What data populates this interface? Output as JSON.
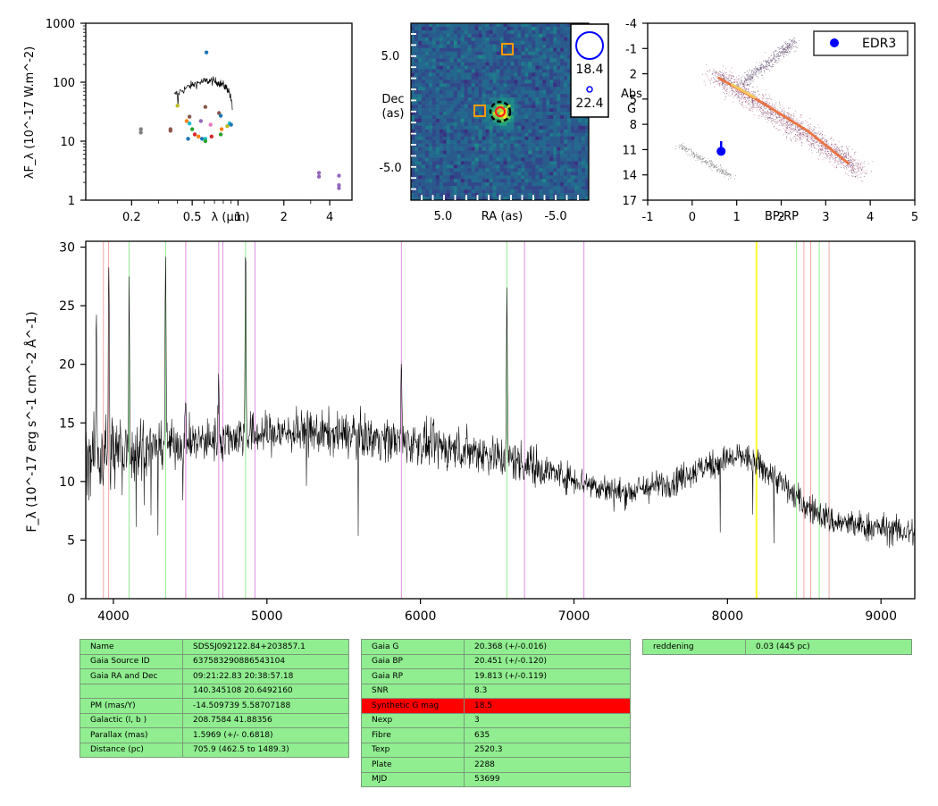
{
  "sed": {
    "ylabel": "λF_λ (10^-17 W.m^-2)",
    "xlabel": "λ (μm)",
    "y_ticks": [
      "1",
      "10",
      "100",
      "1000"
    ],
    "x_ticks": [
      "0.2",
      "0.5",
      "1",
      "2",
      "4"
    ],
    "scale": "log-log",
    "spectrum_span_um": [
      0.38,
      0.92
    ],
    "spectrum_level": [
      55,
      130
    ],
    "points": [
      {
        "x": 0.23,
        "y": 16,
        "color": "#7f7f7f"
      },
      {
        "x": 0.23,
        "y": 14,
        "color": "#7f7f7f"
      },
      {
        "x": 0.36,
        "y": 16,
        "color": "#8c564b"
      },
      {
        "x": 0.36,
        "y": 15,
        "color": "#8c564b"
      },
      {
        "x": 0.4,
        "y": 40,
        "color": "#bcbd22"
      },
      {
        "x": 0.46,
        "y": 22,
        "color": "#ff7f0e"
      },
      {
        "x": 0.48,
        "y": 26,
        "color": "#8c564b"
      },
      {
        "x": 0.48,
        "y": 20,
        "color": "#17becf"
      },
      {
        "x": 0.47,
        "y": 11,
        "color": "#1f77b4"
      },
      {
        "x": 0.5,
        "y": 16,
        "color": "#2ca02c"
      },
      {
        "x": 0.52,
        "y": 13,
        "color": "#d62728"
      },
      {
        "x": 0.55,
        "y": 12,
        "color": "#ff7f0e"
      },
      {
        "x": 0.57,
        "y": 22,
        "color": "#9467bd"
      },
      {
        "x": 0.58,
        "y": 11,
        "color": "#1f77b4"
      },
      {
        "x": 0.61,
        "y": 38,
        "color": "#8c564b"
      },
      {
        "x": 0.61,
        "y": 11,
        "color": "#17becf"
      },
      {
        "x": 0.61,
        "y": 10,
        "color": "#2ca02c"
      },
      {
        "x": 0.62,
        "y": 320,
        "color": "#1f77b4"
      },
      {
        "x": 0.66,
        "y": 19,
        "color": "#e377c2"
      },
      {
        "x": 0.67,
        "y": 12,
        "color": "#d62728"
      },
      {
        "x": 0.75,
        "y": 30,
        "color": "#8c564b"
      },
      {
        "x": 0.77,
        "y": 27,
        "color": "#1f77b4"
      },
      {
        "x": 0.77,
        "y": 13,
        "color": "#2ca02c"
      },
      {
        "x": 0.78,
        "y": 16,
        "color": "#ff7f0e"
      },
      {
        "x": 0.85,
        "y": 18,
        "color": "#bcbd22"
      },
      {
        "x": 0.88,
        "y": 20,
        "color": "#17becf"
      },
      {
        "x": 0.9,
        "y": 19,
        "color": "#1f77b4"
      },
      {
        "x": 3.4,
        "y": 2.9,
        "color": "#9467bd"
      },
      {
        "x": 3.4,
        "y": 2.5,
        "color": "#9467bd"
      },
      {
        "x": 4.6,
        "y": 2.6,
        "color": "#9467bd"
      },
      {
        "x": 4.6,
        "y": 1.8,
        "color": "#9467bd"
      },
      {
        "x": 4.6,
        "y": 1.6,
        "color": "#9467bd"
      }
    ]
  },
  "image": {
    "xlabel": "RA (as)",
    "ylabel_line1": "Dec",
    "ylabel_line2": "(as)",
    "x_ticks": [
      "5.0",
      "-5.0"
    ],
    "y_ticks": [
      "5.0",
      "-5.0"
    ],
    "legend_mags": [
      "18.4",
      "22.4"
    ]
  },
  "cmd": {
    "xlabel": "BP-RP",
    "ylabel_line1": "Abs",
    "ylabel_line2": "G",
    "x_ticks": [
      "-1",
      "0",
      "1",
      "2",
      "3",
      "4",
      "5"
    ],
    "y_ticks": [
      "-4",
      "-1",
      "2",
      "5",
      "8",
      "11",
      "14",
      "17"
    ],
    "legend": "EDR3",
    "star": {
      "bp_rp": 0.65,
      "abs_g": 11.2,
      "err": 1.2
    }
  },
  "chart_data": {
    "type": "line",
    "title": "",
    "xlabel": "",
    "ylabel": "F_λ (10^-17 erg s^-1 cm^-2 Å^-1)",
    "xlim": [
      3820,
      9220
    ],
    "ylim": [
      0,
      30.5
    ],
    "x_ticks": [
      "4000",
      "5000",
      "6000",
      "7000",
      "8000",
      "9000"
    ],
    "y_ticks": [
      "0",
      "5",
      "10",
      "15",
      "20",
      "25",
      "30"
    ],
    "continuum_x": [
      3820,
      4000,
      4300,
      4600,
      4900,
      5200,
      5500,
      5800,
      6100,
      6400,
      6700,
      7000,
      7300,
      7600,
      7900,
      8100,
      8300,
      8500,
      8700,
      9000,
      9220
    ],
    "continuum_y": [
      12.0,
      12.5,
      13.0,
      13.5,
      14.0,
      14.2,
      14.0,
      13.6,
      13.0,
      12.5,
      11.5,
      10.2,
      9.0,
      9.8,
      11.5,
      12.2,
      10.5,
      8.0,
      6.5,
      6.0,
      5.6
    ],
    "emission_lines": [
      {
        "x": 3889,
        "peak": 22.5
      },
      {
        "x": 3970,
        "peak": 28.2
      },
      {
        "x": 4102,
        "peak": 26.5
      },
      {
        "x": 4340,
        "peak": 30.0
      },
      {
        "x": 4471,
        "peak": 16.5
      },
      {
        "x": 4686,
        "peak": 19.0
      },
      {
        "x": 4861,
        "peak": 30.5
      },
      {
        "x": 5876,
        "peak": 20.0
      },
      {
        "x": 6563,
        "peak": 25.8
      }
    ],
    "marker_lines": [
      {
        "x": 3935,
        "color": "#f4a6a6"
      },
      {
        "x": 3969,
        "color": "#f4a6a6"
      },
      {
        "x": 4102,
        "color": "#90ee90"
      },
      {
        "x": 4340,
        "color": "#90ee90"
      },
      {
        "x": 4471,
        "color": "#e08fe0"
      },
      {
        "x": 4686,
        "color": "#e08fe0"
      },
      {
        "x": 4713,
        "color": "#e08fe0"
      },
      {
        "x": 4861,
        "color": "#90ee90"
      },
      {
        "x": 4922,
        "color": "#e08fe0"
      },
      {
        "x": 5876,
        "color": "#e08fe0"
      },
      {
        "x": 6563,
        "color": "#90ee90"
      },
      {
        "x": 6678,
        "color": "#e08fe0"
      },
      {
        "x": 7065,
        "color": "#e08fe0"
      },
      {
        "x": 8450,
        "color": "#90ee90"
      },
      {
        "x": 8498,
        "color": "#f4a6a6"
      },
      {
        "x": 8542,
        "color": "#f4a6a6"
      },
      {
        "x": 8598,
        "color": "#90ee90"
      },
      {
        "x": 8662,
        "color": "#f4a6a6"
      }
    ],
    "highlight_band": {
      "x": [
        8183,
        8195
      ],
      "color": "#ffff33"
    }
  },
  "tables": {
    "left": [
      [
        "Name",
        "SDSSJ092122.84+203857.1"
      ],
      [
        "Gaia Source ID",
        "637583290886543104"
      ],
      [
        "Gaia RA and Dec",
        "09:21:22.83    20:38:57.18"
      ],
      [
        "",
        "140.345108    20.6492160"
      ],
      [
        "PM (mas/Y)",
        "-14.509739    5.58707188"
      ],
      [
        "Galactic (l, b )",
        "208.7584    41.88356"
      ],
      [
        "Parallax (mas)",
        "1.5969 (+/- 0.6818)"
      ],
      [
        "Distance (pc)",
        "705.9 (462.5 to 1489.3)"
      ]
    ],
    "middle": [
      [
        "Gaia G",
        "20.368 (+/-0.016)"
      ],
      [
        "Gaia BP",
        "20.451 (+/-0.120)"
      ],
      [
        "Gaia RP",
        "19.813 (+/-0.119)"
      ],
      [
        "SNR",
        "8.3"
      ],
      [
        "Synthetic G mag",
        "18.5"
      ],
      [
        "Nexp",
        "3"
      ],
      [
        "Fibre",
        "635"
      ],
      [
        "Texp",
        "2520.3"
      ],
      [
        "Plate",
        "2288"
      ],
      [
        "MJD",
        "53699"
      ]
    ],
    "right": [
      [
        "reddening",
        "0.03 (445 pc)"
      ]
    ],
    "alert_row_label": "Synthetic G mag",
    "alert_color": "#ff0000",
    "cell_color": "#90ee90"
  }
}
